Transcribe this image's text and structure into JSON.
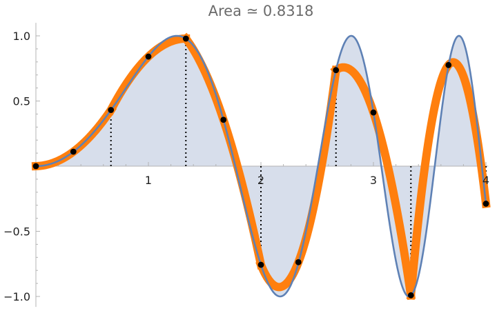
{
  "chart_data": {
    "type": "line",
    "title": "Area ≃ 0.8318",
    "xlabel": "",
    "ylabel": "",
    "xlim": [
      0,
      4.02
    ],
    "ylim": [
      -1.08,
      1.1
    ],
    "x_ticks": [
      1,
      2,
      3,
      4
    ],
    "y_ticks": [
      -1.0,
      -0.5,
      0.5,
      1.0
    ],
    "x_tick_labels": [
      "1",
      "2",
      "3",
      "4"
    ],
    "y_tick_labels": [
      "−1.0",
      "−0.5",
      "0.5",
      "1.0"
    ],
    "grid": false,
    "legend": "none",
    "series": [
      {
        "function": "sin(x^2)",
        "color": "#5e81b5",
        "fill": "#d7deeb",
        "x_range": [
          0,
          4
        ]
      },
      {
        "method": "piecewise quadratic interpolation through sample points",
        "color": "#ff7f0e",
        "points": [
          [
            0.0,
            0.0
          ],
          [
            0.333,
            0.111
          ],
          [
            0.667,
            0.431
          ],
          [
            1.0,
            0.841
          ],
          [
            1.333,
            0.979
          ],
          [
            1.667,
            0.356
          ],
          [
            2.0,
            -0.757
          ],
          [
            2.333,
            -0.737
          ],
          [
            2.667,
            0.737
          ],
          [
            3.0,
            0.412
          ],
          [
            3.333,
            -0.991
          ],
          [
            3.667,
            0.776
          ],
          [
            4.0,
            -0.288
          ]
        ],
        "segment_breaks": [
          0.667,
          1.333,
          2.0,
          2.667,
          3.333,
          4.0
        ]
      }
    ]
  },
  "colors": {
    "curve": "#5e81b5",
    "area_fill": "#d7deeb",
    "approx_curve": "#ff7f0e",
    "points": "#000000",
    "axes": "#b3b3b3",
    "title": "#6b6b6b"
  }
}
